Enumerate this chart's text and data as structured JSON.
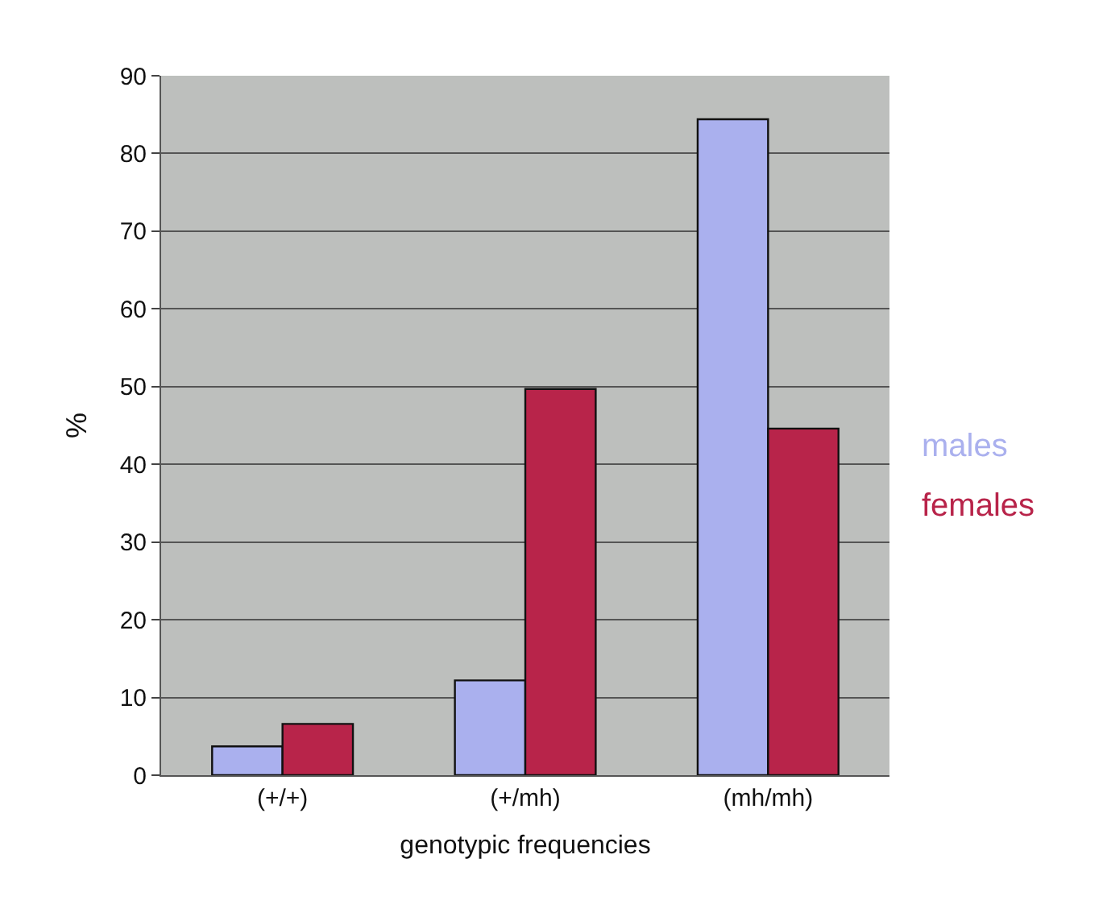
{
  "chart_data": {
    "type": "bar",
    "xlabel": "genotypic frequencies",
    "ylabel": "%",
    "categories": [
      "(+/+)",
      "(+/mh)",
      "(mh/mh)"
    ],
    "series": [
      {
        "name": "males",
        "color": "#aab0ee",
        "values": [
          3.7,
          12.2,
          84.4
        ]
      },
      {
        "name": "females",
        "color": "#b8244a",
        "values": [
          6.6,
          49.7,
          44.6
        ]
      }
    ],
    "ylim": [
      0,
      90
    ],
    "yticks": [
      0,
      10,
      20,
      30,
      40,
      50,
      60,
      70,
      80,
      90
    ],
    "grid": "y",
    "legend": "right"
  }
}
